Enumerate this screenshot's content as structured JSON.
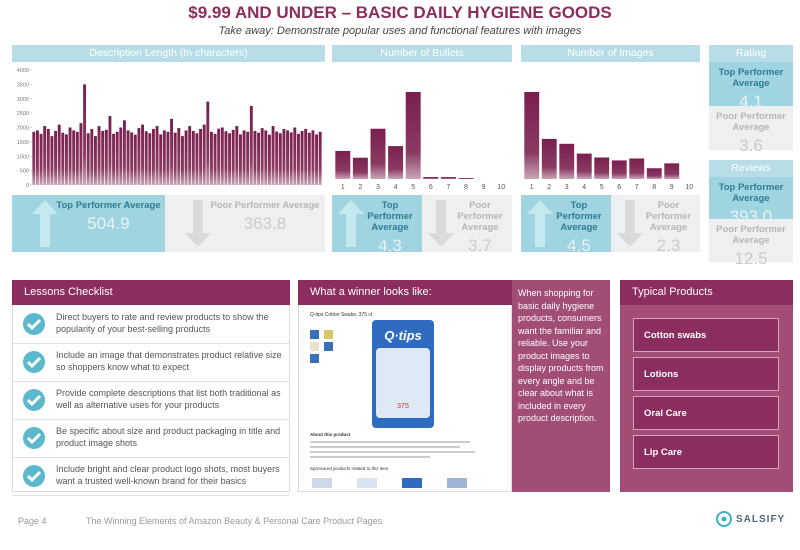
{
  "header": {
    "title": "$9.99 AND UNDER – BASIC DAILY HYGIENE GOODS",
    "subtitle": "Take away: Demonstrate popular uses and functional features with images"
  },
  "chart_data": [
    {
      "type": "bar",
      "title": "Description Length (In characters)",
      "color": "#7a1f4f",
      "values": [
        1850,
        1900,
        1780,
        2050,
        1950,
        1700,
        1880,
        2100,
        1820,
        1760,
        2000,
        1900,
        1850,
        2150,
        3500,
        1800,
        1950,
        1700,
        2050,
        1880,
        1920,
        2400,
        1780,
        1850,
        2000,
        2250,
        1900,
        1830,
        1750,
        1980,
        2100,
        1870,
        1800,
        1950,
        2050,
        1760,
        1900,
        1850,
        2300,
        1820,
        1980,
        1700,
        1900,
        2050,
        1880,
        1800,
        1950,
        2100,
        2900,
        1850,
        1780,
        1960,
        2000,
        1870,
        1800,
        1920,
        2050,
        1760,
        1900,
        1850,
        2750,
        1880,
        1820,
        1980,
        1900,
        1750,
        2050,
        1860,
        1800,
        1950,
        1900,
        1830,
        2000,
        1780,
        1880,
        1950,
        1820,
        1900,
        1760,
        1850
      ],
      "ylim": [
        0,
        4000
      ],
      "yticks": [
        0,
        500,
        1000,
        1500,
        2000,
        2500,
        3000,
        3500,
        4000
      ]
    },
    {
      "type": "bar",
      "title": "Number of Bullets",
      "color": "#7a1f4f",
      "categories": [
        "1",
        "2",
        "3",
        "4",
        "5",
        "6",
        "7",
        "8",
        "9",
        "10"
      ],
      "values": [
        29,
        22,
        52,
        34,
        90,
        2,
        2,
        1,
        0,
        0
      ]
    },
    {
      "type": "bar",
      "title": "Number of Images",
      "color": "#7a1f4f",
      "categories": [
        "1",
        "2",
        "3",
        "4",
        "5",
        "6",
        "7",
        "8",
        "9",
        "10"
      ],
      "values": [
        89,
        41,
        36,
        26,
        22,
        19,
        21,
        11,
        16,
        0
      ]
    }
  ],
  "stats": [
    {
      "top_label": "Top Performer Average",
      "top_value": "504.9",
      "poor_label": "Poor Performer Average",
      "poor_value": "363.8"
    },
    {
      "top_label": "Top Performer Average",
      "top_value": "4.3",
      "poor_label": "Poor Performer Average",
      "poor_value": "3.7"
    },
    {
      "top_label": "Top Performer Average",
      "top_value": "4.5",
      "poor_label": "Poor Performer Average",
      "poor_value": "2.3"
    }
  ],
  "rating": {
    "title": "Rating",
    "top_label": "Top Performer Average",
    "top_value": "4.1",
    "poor_label": "Poor Performer Average",
    "poor_value": "3.6"
  },
  "reviews": {
    "title": "Reviews",
    "top_label": "Top Performer Average",
    "top_value": "393.0",
    "poor_label": "Poor Performer Average",
    "poor_value": "12.5"
  },
  "lessons": {
    "title": "Lessons Checklist",
    "items": [
      "Direct buyers to rate and review products to show the popularity of your best-selling products",
      "Include an image that demonstrates product relative size so shoppers know what to expect",
      "Provide complete descriptions that list both traditional as well as alternative uses for your products",
      "Be specific about size and product packaging in title and product image shots",
      "Include bright and clear product logo shots, most buyers want a trusted well-known brand for their basics"
    ]
  },
  "winner": {
    "title": "What a winner looks like:",
    "product_title": "Q-tips Cotton Swabs, 375 ct",
    "brand": "Q·tips",
    "count": "375",
    "about": "About this product",
    "sponsored": "Sponsored products related to this item",
    "text": "When shopping for basic daily hygiene products, consumers want the familiar and reliable. Use your product images to display products from every angle and be clear about what is included in every product description."
  },
  "products": {
    "title": "Typical Products",
    "items": [
      "Cotton swabs",
      "Lotions",
      "Oral Care",
      "Lip Care"
    ]
  },
  "footer": {
    "page": "Page 4",
    "doc_title": "The Winning Elements of Amazon Beauty & Personal Care Product Pages",
    "brand": "SALSIFY"
  }
}
